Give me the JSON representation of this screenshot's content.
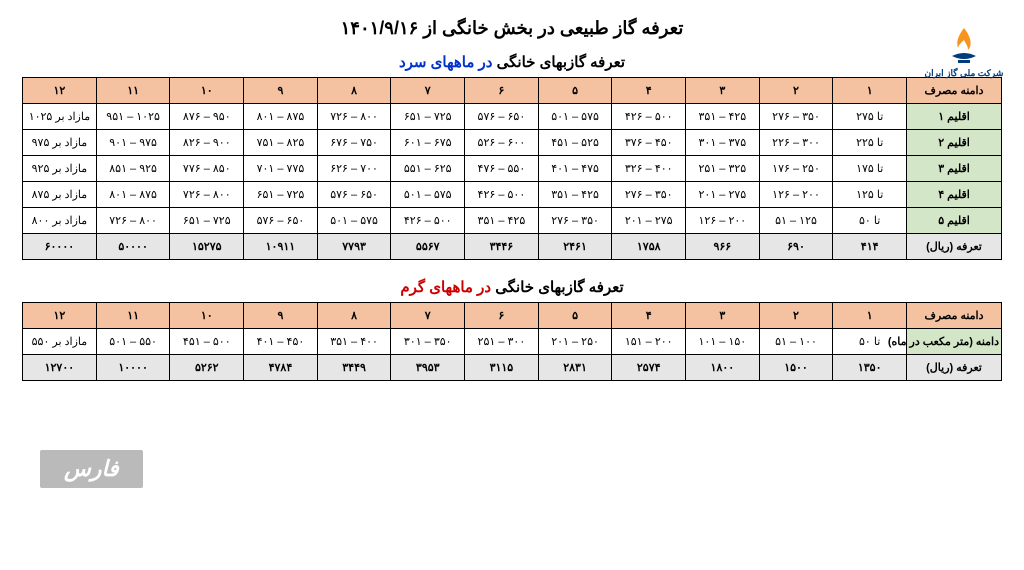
{
  "logo": {
    "caption": "شرکت ملی گاز ایران",
    "flame_color": "#f7941d",
    "base_color": "#003d7a"
  },
  "titles": {
    "main": "تعرفه گاز طبیعی در بخش خانگی از ۱۴۰۱/۹/۱۶",
    "cold_prefix": "تعرفه گازبهای خانگی",
    "cold_suffix": "در ماههای سرد",
    "warm_prefix": "تعرفه گازبهای خانگی",
    "warm_suffix": "در ماههای گرم"
  },
  "cold_table": {
    "header_label": "دامنه مصرف",
    "cols": [
      "۱",
      "۲",
      "۳",
      "۴",
      "۵",
      "۶",
      "۷",
      "۸",
      "۹",
      "۱۰",
      "۱۱",
      "۱۲"
    ],
    "rows": [
      {
        "label": "اقلیم ۱",
        "cells": [
          "تا ۲۷۵",
          "۳۵۰ – ۲۷۶",
          "۴۲۵ – ۳۵۱",
          "۵۰۰ – ۴۲۶",
          "۵۷۵ – ۵۰۱",
          "۶۵۰ – ۵۷۶",
          "۷۲۵ – ۶۵۱",
          "۸۰۰ – ۷۲۶",
          "۸۷۵ – ۸۰۱",
          "۹۵۰ – ۸۷۶",
          "۱۰۲۵ – ۹۵۱",
          "مازاد بر ۱۰۲۵"
        ]
      },
      {
        "label": "اقلیم ۲",
        "cells": [
          "تا ۲۲۵",
          "۳۰۰ – ۲۲۶",
          "۳۷۵ – ۳۰۱",
          "۴۵۰ – ۳۷۶",
          "۵۲۵ – ۴۵۱",
          "۶۰۰ – ۵۲۶",
          "۶۷۵ – ۶۰۱",
          "۷۵۰ – ۶۷۶",
          "۸۲۵ – ۷۵۱",
          "۹۰۰ – ۸۲۶",
          "۹۷۵ – ۹۰۱",
          "مازاد بر ۹۷۵"
        ]
      },
      {
        "label": "اقلیم ۳",
        "cells": [
          "تا ۱۷۵",
          "۲۵۰ – ۱۷۶",
          "۳۲۵ – ۲۵۱",
          "۴۰۰ – ۳۲۶",
          "۴۷۵ – ۴۰۱",
          "۵۵۰ – ۴۷۶",
          "۶۲۵ – ۵۵۱",
          "۷۰۰ – ۶۲۶",
          "۷۷۵ – ۷۰۱",
          "۸۵۰ – ۷۷۶",
          "۹۲۵ – ۸۵۱",
          "مازاد بر ۹۲۵"
        ]
      },
      {
        "label": "اقلیم ۴",
        "cells": [
          "تا ۱۲۵",
          "۲۰۰ – ۱۲۶",
          "۲۷۵ – ۲۰۱",
          "۳۵۰ – ۲۷۶",
          "۴۲۵ – ۳۵۱",
          "۵۰۰ – ۴۲۶",
          "۵۷۵ – ۵۰۱",
          "۶۵۰ – ۵۷۶",
          "۷۲۵ – ۶۵۱",
          "۸۰۰ – ۷۲۶",
          "۸۷۵ – ۸۰۱",
          "مازاد بر ۸۷۵"
        ]
      },
      {
        "label": "اقلیم ۵",
        "cells": [
          "تا ۵۰",
          "۱۲۵ – ۵۱",
          "۲۰۰ – ۱۲۶",
          "۲۷۵ – ۲۰۱",
          "۳۵۰ – ۲۷۶",
          "۴۲۵ – ۳۵۱",
          "۵۰۰ – ۴۲۶",
          "۵۷۵ – ۵۰۱",
          "۶۵۰ – ۵۷۶",
          "۷۲۵ – ۶۵۱",
          "۸۰۰ – ۷۲۶",
          "مازاد بر ۸۰۰"
        ]
      }
    ],
    "tariff_label": "تعرفه (ریال)",
    "tariff": [
      "۴۱۴",
      "۶۹۰",
      "۹۶۶",
      "۱۷۵۸",
      "۲۴۶۱",
      "۳۴۴۶",
      "۵۵۶۷",
      "۷۷۹۳",
      "۱۰۹۱۱",
      "۱۵۲۷۵",
      "۵۰۰۰۰",
      "۶۰۰۰۰"
    ]
  },
  "warm_table": {
    "header_label": "دامنه مصرف",
    "cols": [
      "۱",
      "۲",
      "۳",
      "۴",
      "۵",
      "۶",
      "۷",
      "۸",
      "۹",
      "۱۰",
      "۱۱",
      "۱۲"
    ],
    "row_label": "دامنه (متر مکعب در ماه)",
    "row_cells": [
      "تا ۵۰",
      "۱۰۰ – ۵۱",
      "۱۵۰ – ۱۰۱",
      "۲۰۰ – ۱۵۱",
      "۲۵۰ – ۲۰۱",
      "۳۰۰ – ۲۵۱",
      "۳۵۰ – ۳۰۱",
      "۴۰۰ – ۳۵۱",
      "۴۵۰ – ۴۰۱",
      "۵۰۰ – ۴۵۱",
      "۵۵۰ – ۵۰۱",
      "مازاد بر ۵۵۰"
    ],
    "tariff_label": "تعرفه (ریال)",
    "tariff": [
      "۱۳۵۰",
      "۱۵۰۰",
      "۱۸۰۰",
      "۲۵۷۴",
      "۲۸۳۱",
      "۳۱۱۵",
      "۳۹۵۳",
      "۳۴۴۹",
      "۴۷۸۴",
      "۵۲۶۲",
      "۱۰۰۰۰",
      "۱۲۷۰۰"
    ]
  },
  "watermark": "فارس"
}
